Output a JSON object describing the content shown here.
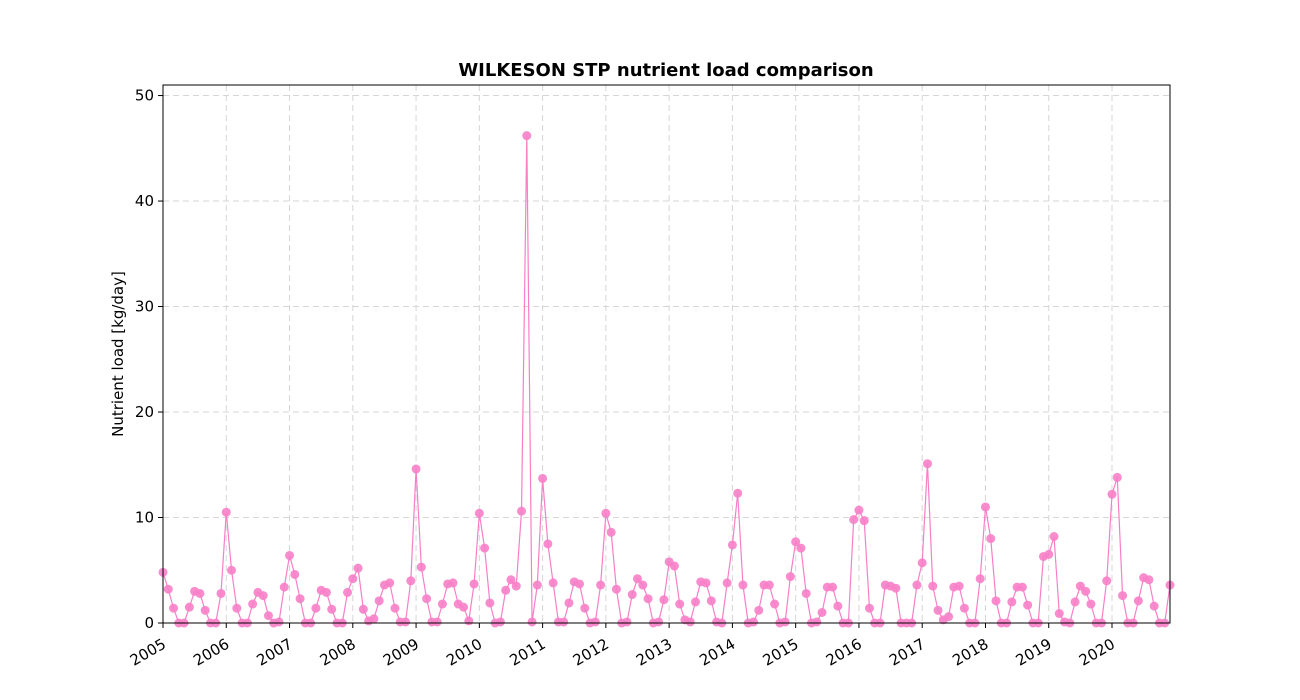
{
  "chart_data": {
    "type": "line",
    "title": "WILKESON STP nutrient load comparison",
    "xlabel": "",
    "ylabel": "Nutrient load [kg/day]",
    "xlim": [
      "2005-01",
      "2020-12"
    ],
    "ylim": [
      0,
      51
    ],
    "yticks": [
      0,
      10,
      20,
      30,
      40,
      50
    ],
    "xticks": [
      "2005",
      "2006",
      "2007",
      "2008",
      "2009",
      "2010",
      "2011",
      "2012",
      "2013",
      "2014",
      "2015",
      "2016",
      "2017",
      "2018",
      "2019",
      "2020"
    ],
    "grid": true,
    "series": [
      {
        "color": "#f77fc8",
        "marker": "circle",
        "start": "2005-01",
        "frequency": "monthly",
        "values": [
          4.8,
          3.2,
          1.4,
          0.0,
          0.0,
          1.5,
          3.0,
          2.8,
          1.2,
          0.0,
          0.0,
          2.8,
          10.5,
          5.0,
          1.4,
          0.0,
          0.0,
          1.8,
          2.9,
          2.6,
          0.7,
          0.0,
          0.1,
          3.4,
          6.4,
          4.6,
          2.3,
          0.0,
          0.0,
          1.4,
          3.1,
          2.9,
          1.3,
          0.0,
          0.0,
          2.9,
          4.2,
          5.2,
          1.3,
          0.2,
          0.4,
          2.1,
          3.6,
          3.8,
          1.4,
          0.1,
          0.1,
          4.0,
          14.6,
          5.3,
          2.3,
          0.1,
          0.1,
          1.8,
          3.7,
          3.8,
          1.8,
          1.5,
          0.2,
          3.7,
          10.4,
          7.1,
          1.9,
          0.0,
          0.1,
          3.1,
          4.1,
          3.5,
          10.6,
          46.2,
          0.1,
          3.6,
          13.7,
          7.5,
          3.8,
          0.1,
          0.1,
          1.9,
          3.9,
          3.7,
          1.4,
          0.0,
          0.1,
          3.6,
          10.4,
          8.6,
          3.2,
          0.0,
          0.1,
          2.7,
          4.2,
          3.6,
          2.3,
          0.0,
          0.1,
          2.2,
          5.8,
          5.4,
          1.8,
          0.3,
          0.1,
          2.0,
          3.9,
          3.8,
          2.1,
          0.1,
          0.0,
          3.8,
          7.4,
          12.3,
          3.6,
          0.0,
          0.1,
          1.2,
          3.6,
          3.6,
          1.8,
          0.0,
          0.1,
          4.4,
          7.7,
          7.1,
          2.8,
          0.0,
          0.1,
          1.0,
          3.4,
          3.4,
          1.6,
          0.0,
          0.0,
          9.8,
          10.7,
          9.7,
          1.4,
          0.0,
          0.0,
          3.6,
          3.5,
          3.3,
          0.0,
          0.0,
          0.0,
          3.6,
          5.7,
          15.1,
          3.5,
          1.2,
          0.3,
          0.6,
          3.4,
          3.5,
          1.4,
          0.0,
          0.0,
          4.2,
          11.0,
          8.0,
          2.1,
          0.0,
          0.0,
          2.0,
          3.4,
          3.4,
          1.7,
          0.0,
          0.0,
          6.3,
          6.5,
          8.2,
          0.9,
          0.1,
          0.0,
          2.0,
          3.5,
          3.0,
          1.8,
          0.0,
          0.0,
          4.0,
          12.2,
          13.8,
          2.6,
          0.0,
          0.0,
          2.1,
          4.3,
          4.1,
          1.6,
          0.0,
          0.0,
          3.6
        ]
      }
    ]
  }
}
